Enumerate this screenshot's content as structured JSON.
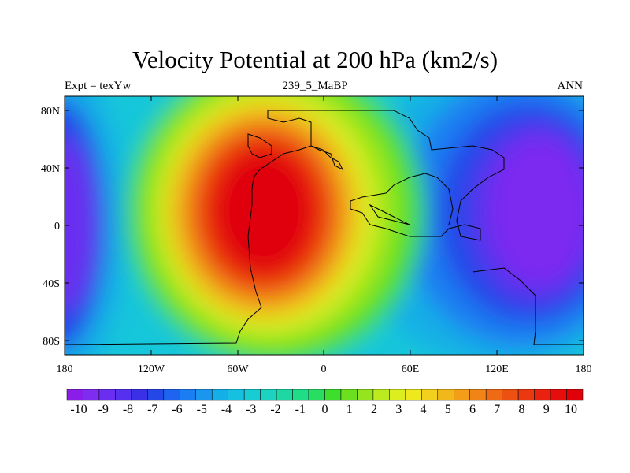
{
  "title": "Velocity Potential at 200 hPa (km2/s)",
  "left_string": "Expt = texYw",
  "center_string": "239_5_MaBP",
  "right_string": "ANN",
  "x_ticks": [
    "180",
    "120W",
    "60W",
    "0",
    "60E",
    "120E",
    "180"
  ],
  "y_ticks": [
    "80N",
    "40N",
    "0",
    "40S",
    "80S"
  ],
  "colorbar": {
    "labels": [
      "-10",
      "-9",
      "-8",
      "-7",
      "-6",
      "-5",
      "-4",
      "-3",
      "-2",
      "-1",
      "0",
      "1",
      "2",
      "3",
      "4",
      "5",
      "6",
      "7",
      "8",
      "9",
      "10"
    ],
    "colors": [
      "#8a1ee8",
      "#7d2cf0",
      "#6a2ef0",
      "#5530ee",
      "#3a30e8",
      "#2448e8",
      "#1e64f0",
      "#1a7ef2",
      "#1a96ee",
      "#16aee6",
      "#16c0e0",
      "#18ccd4",
      "#1cd2c0",
      "#1ed8a4",
      "#20dc86",
      "#28de60",
      "#3ede2c",
      "#6ce01e",
      "#94e41e",
      "#bcea1e",
      "#dcee20",
      "#f0e81e",
      "#f2d01c",
      "#f2b81a",
      "#f29e18",
      "#f08416",
      "#ee6a14",
      "#ec5012",
      "#ea3810",
      "#e8220e",
      "#e60e0c",
      "#e0000a"
    ]
  },
  "chart_data": {
    "type": "heatmap",
    "title": "Velocity Potential at 200 hPa (km2/s)",
    "subtitle_left": "Expt = texYw",
    "subtitle_center": "239_5_MaBP",
    "subtitle_right": "ANN",
    "units": "km2/s",
    "x_range": [
      -180,
      180
    ],
    "y_range": [
      -90,
      90
    ],
    "contour_levels": [
      -10,
      -9,
      -8,
      -7,
      -6,
      -5,
      -4,
      -3,
      -2,
      -1,
      0,
      1,
      2,
      3,
      4,
      5,
      6,
      7,
      8,
      9,
      10
    ],
    "features": [
      {
        "name": "maximum",
        "lon": -30,
        "lat": 5,
        "value": 10
      },
      {
        "name": "minimum",
        "lon": 150,
        "lat": 10,
        "value": -10
      },
      {
        "name": "minimum",
        "lon": -180,
        "lat": 0,
        "value": -10
      }
    ]
  }
}
